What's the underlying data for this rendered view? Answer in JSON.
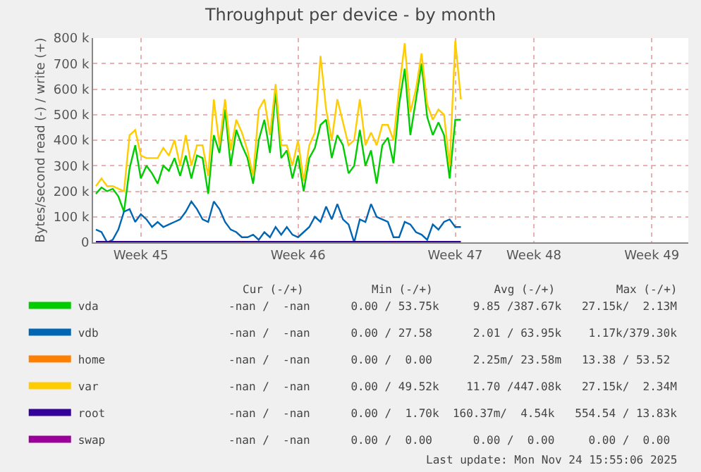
{
  "chart_data": {
    "type": "line",
    "title": "Throughput per device - by month",
    "ylabel": "Bytes/second read (-) / write (+)",
    "categories": [
      null,
      null,
      null,
      null,
      null,
      null,
      null,
      null,
      "Week 45",
      null,
      null,
      null,
      null,
      null,
      null,
      null,
      null,
      null,
      null,
      null,
      null,
      null,
      null,
      null,
      null,
      null,
      null,
      null,
      null,
      null,
      null,
      null,
      null,
      null,
      null,
      null,
      "Week 46",
      null,
      null,
      null,
      null,
      null,
      null,
      null,
      null,
      null,
      null,
      null,
      null,
      null,
      null,
      null,
      null,
      null,
      null,
      null,
      null,
      null,
      null,
      null,
      null,
      null,
      null,
      null,
      "Week 47",
      null,
      null,
      null,
      null,
      null,
      null,
      null,
      null,
      null,
      null,
      null,
      null,
      null,
      "Week 48",
      null,
      null,
      null,
      null,
      null,
      null,
      null,
      null,
      null,
      null,
      null,
      null,
      null,
      null,
      null,
      null,
      null,
      null,
      null,
      null,
      "Week 49",
      null,
      null,
      null,
      null,
      null,
      null
    ],
    "ylim": [
      0,
      800000
    ],
    "yticks": [
      {
        "value": 0,
        "label": "0"
      },
      {
        "value": 100000,
        "label": "100 k"
      },
      {
        "value": 200000,
        "label": "200 k"
      },
      {
        "value": 300000,
        "label": "300 k"
      },
      {
        "value": 400000,
        "label": "400 k"
      },
      {
        "value": 500000,
        "label": "500 k"
      },
      {
        "value": 600000,
        "label": "600 k"
      },
      {
        "value": 700000,
        "label": "700 k"
      },
      {
        "value": 800000,
        "label": "800 k"
      }
    ],
    "grid": true,
    "legend": "bottom",
    "marker": "none",
    "line_style": "solid",
    "series": [
      {
        "name": "vda",
        "color": "#00cc00",
        "values": [
          190000,
          215000,
          200000,
          210000,
          180000,
          120000,
          290000,
          380000,
          250000,
          300000,
          270000,
          230000,
          300000,
          280000,
          330000,
          260000,
          340000,
          250000,
          340000,
          330000,
          190000,
          420000,
          350000,
          520000,
          300000,
          440000,
          380000,
          330000,
          230000,
          400000,
          480000,
          350000,
          590000,
          330000,
          360000,
          250000,
          340000,
          200000,
          330000,
          370000,
          460000,
          480000,
          330000,
          420000,
          380000,
          270000,
          300000,
          440000,
          300000,
          360000,
          230000,
          380000,
          410000,
          310000,
          540000,
          680000,
          420000,
          560000,
          700000,
          490000,
          420000,
          470000,
          420000,
          250000,
          480000,
          480000,
          null,
          null,
          null,
          null,
          null,
          null,
          null,
          null,
          null,
          null,
          null,
          null,
          null,
          null,
          null,
          null,
          null,
          null,
          null,
          null,
          null,
          null,
          null,
          null,
          null,
          null,
          null,
          null,
          null,
          null,
          null,
          null,
          null,
          null,
          null,
          null,
          null,
          null,
          null,
          null
        ]
      },
      {
        "name": "vdb",
        "color": "#0066b3",
        "values": [
          50000,
          40000,
          0,
          10000,
          50000,
          120000,
          130000,
          80000,
          110000,
          90000,
          60000,
          80000,
          60000,
          70000,
          80000,
          90000,
          120000,
          160000,
          130000,
          90000,
          80000,
          160000,
          130000,
          80000,
          50000,
          40000,
          20000,
          20000,
          30000,
          10000,
          40000,
          20000,
          60000,
          30000,
          60000,
          30000,
          20000,
          40000,
          60000,
          100000,
          80000,
          140000,
          90000,
          150000,
          90000,
          70000,
          0,
          90000,
          80000,
          150000,
          100000,
          90000,
          80000,
          20000,
          20000,
          80000,
          70000,
          40000,
          30000,
          10000,
          70000,
          50000,
          80000,
          90000,
          60000,
          60000,
          null,
          null,
          null,
          null,
          null,
          null,
          null,
          null,
          null,
          null,
          null,
          null,
          null,
          null,
          null,
          null,
          null,
          null,
          null,
          null,
          null,
          null,
          null,
          null,
          null,
          null,
          null,
          null,
          null,
          null,
          null,
          null,
          null,
          null,
          null,
          null,
          null,
          null,
          null,
          null
        ]
      },
      {
        "name": "home",
        "color": "#ff8000",
        "values": [
          null,
          null,
          null,
          null,
          null,
          null,
          null,
          null,
          null,
          null,
          null,
          null,
          null,
          null,
          null,
          null,
          null,
          null,
          null,
          null,
          null,
          null,
          null,
          null,
          null,
          null,
          null,
          null,
          null,
          null,
          null,
          null,
          null,
          null,
          null,
          null,
          null,
          null,
          null,
          null,
          null,
          null,
          null,
          null,
          null,
          null,
          null,
          null,
          null,
          null,
          null,
          null,
          null,
          null,
          null,
          null,
          null,
          null,
          null,
          null,
          null,
          null,
          null,
          null,
          null,
          null,
          null,
          null,
          null,
          null,
          null,
          null,
          null,
          null,
          null,
          null,
          null,
          null,
          null,
          null,
          null,
          null,
          null,
          null,
          null,
          null,
          null,
          null,
          null,
          null,
          null,
          null,
          null,
          null,
          null,
          null,
          null,
          null,
          null,
          null,
          null,
          null,
          null,
          null,
          null,
          null
        ]
      },
      {
        "name": "var",
        "color": "#ffcc00",
        "values": [
          220000,
          250000,
          220000,
          220000,
          210000,
          200000,
          420000,
          440000,
          340000,
          330000,
          330000,
          330000,
          370000,
          340000,
          400000,
          300000,
          420000,
          300000,
          380000,
          380000,
          260000,
          560000,
          380000,
          560000,
          360000,
          480000,
          430000,
          360000,
          260000,
          520000,
          560000,
          420000,
          620000,
          380000,
          380000,
          300000,
          400000,
          240000,
          380000,
          430000,
          730000,
          520000,
          400000,
          560000,
          470000,
          380000,
          400000,
          560000,
          380000,
          430000,
          380000,
          460000,
          460000,
          400000,
          600000,
          780000,
          510000,
          600000,
          740000,
          540000,
          480000,
          520000,
          500000,
          300000,
          790000,
          560000,
          null,
          null,
          null,
          null,
          null,
          null,
          null,
          null,
          null,
          null,
          null,
          null,
          null,
          null,
          null,
          null,
          null,
          null,
          null,
          null,
          null,
          null,
          null,
          null,
          null,
          null,
          null,
          null,
          null,
          null,
          null,
          null,
          null,
          null,
          null,
          null,
          null,
          null,
          null,
          null
        ]
      },
      {
        "name": "root",
        "color": "#330099",
        "values": [
          2000,
          2000,
          2000,
          2000,
          2000,
          2000,
          2000,
          2000,
          2000,
          2000,
          2000,
          2000,
          2000,
          2000,
          2000,
          2000,
          2000,
          2000,
          2000,
          2000,
          2000,
          2000,
          2000,
          2000,
          2000,
          2000,
          2000,
          2000,
          2000,
          2000,
          2000,
          2000,
          2000,
          2000,
          2000,
          2000,
          2000,
          2000,
          2000,
          2000,
          2000,
          2000,
          2000,
          2000,
          2000,
          2000,
          2000,
          2000,
          2000,
          2000,
          2000,
          2000,
          2000,
          2000,
          2000,
          2000,
          2000,
          2000,
          2000,
          2000,
          2000,
          2000,
          2000,
          2000,
          2000,
          2000,
          null,
          null,
          null,
          null,
          null,
          null,
          null,
          null,
          null,
          null,
          null,
          null,
          null,
          null,
          null,
          null,
          null,
          null,
          null,
          null,
          null,
          null,
          null,
          null,
          null,
          null,
          null,
          null,
          null,
          null,
          null,
          null,
          null,
          null,
          null,
          null,
          null,
          null,
          null,
          null
        ]
      },
      {
        "name": "swap",
        "color": "#990099",
        "values": [
          null,
          null,
          null,
          null,
          null,
          null,
          null,
          null,
          null,
          null,
          null,
          null,
          null,
          null,
          null,
          null,
          null,
          null,
          null,
          null,
          null,
          null,
          null,
          null,
          null,
          null,
          null,
          null,
          null,
          null,
          null,
          null,
          null,
          null,
          null,
          null,
          null,
          null,
          null,
          null,
          null,
          null,
          null,
          null,
          null,
          null,
          null,
          null,
          null,
          null,
          null,
          null,
          null,
          null,
          null,
          null,
          null,
          null,
          null,
          null,
          null,
          null,
          null,
          null,
          null,
          null,
          null,
          null,
          null,
          null,
          null,
          null,
          null,
          null,
          null,
          null,
          null,
          null,
          null,
          null,
          null,
          null,
          null,
          null,
          null,
          null,
          null,
          null,
          null,
          null,
          null,
          null,
          null,
          null,
          null,
          null,
          null,
          null,
          null,
          null,
          null,
          null,
          null,
          null,
          null,
          null
        ]
      }
    ],
    "annotations": [
      "Cur (-/+)          Min (-/+)         Avg (-/+)         Max (-/+)",
      "-nan /  -nan      0.00 / 53.75k     9.85 /387.67k   27.15k/  2.13M",
      "-nan /  -nan      0.00 / 27.58      2.01 / 63.95k    1.17k/379.30k",
      "-nan /  -nan      0.00 /  0.00      2.25m/ 23.58m   13.38 / 53.52 ",
      "-nan /  -nan      0.00 / 49.52k    11.70 /447.08k   27.15k/  2.34M",
      "-nan /  -nan      0.00 /  1.70k  160.37m/  4.54k   554.54 / 13.83k",
      "-nan /  -nan      0.00 /  0.00      0.00 /  0.00     0.00 /  0.00 ",
      "Last update: Mon Nov 24 15:55:06 2025"
    ]
  }
}
